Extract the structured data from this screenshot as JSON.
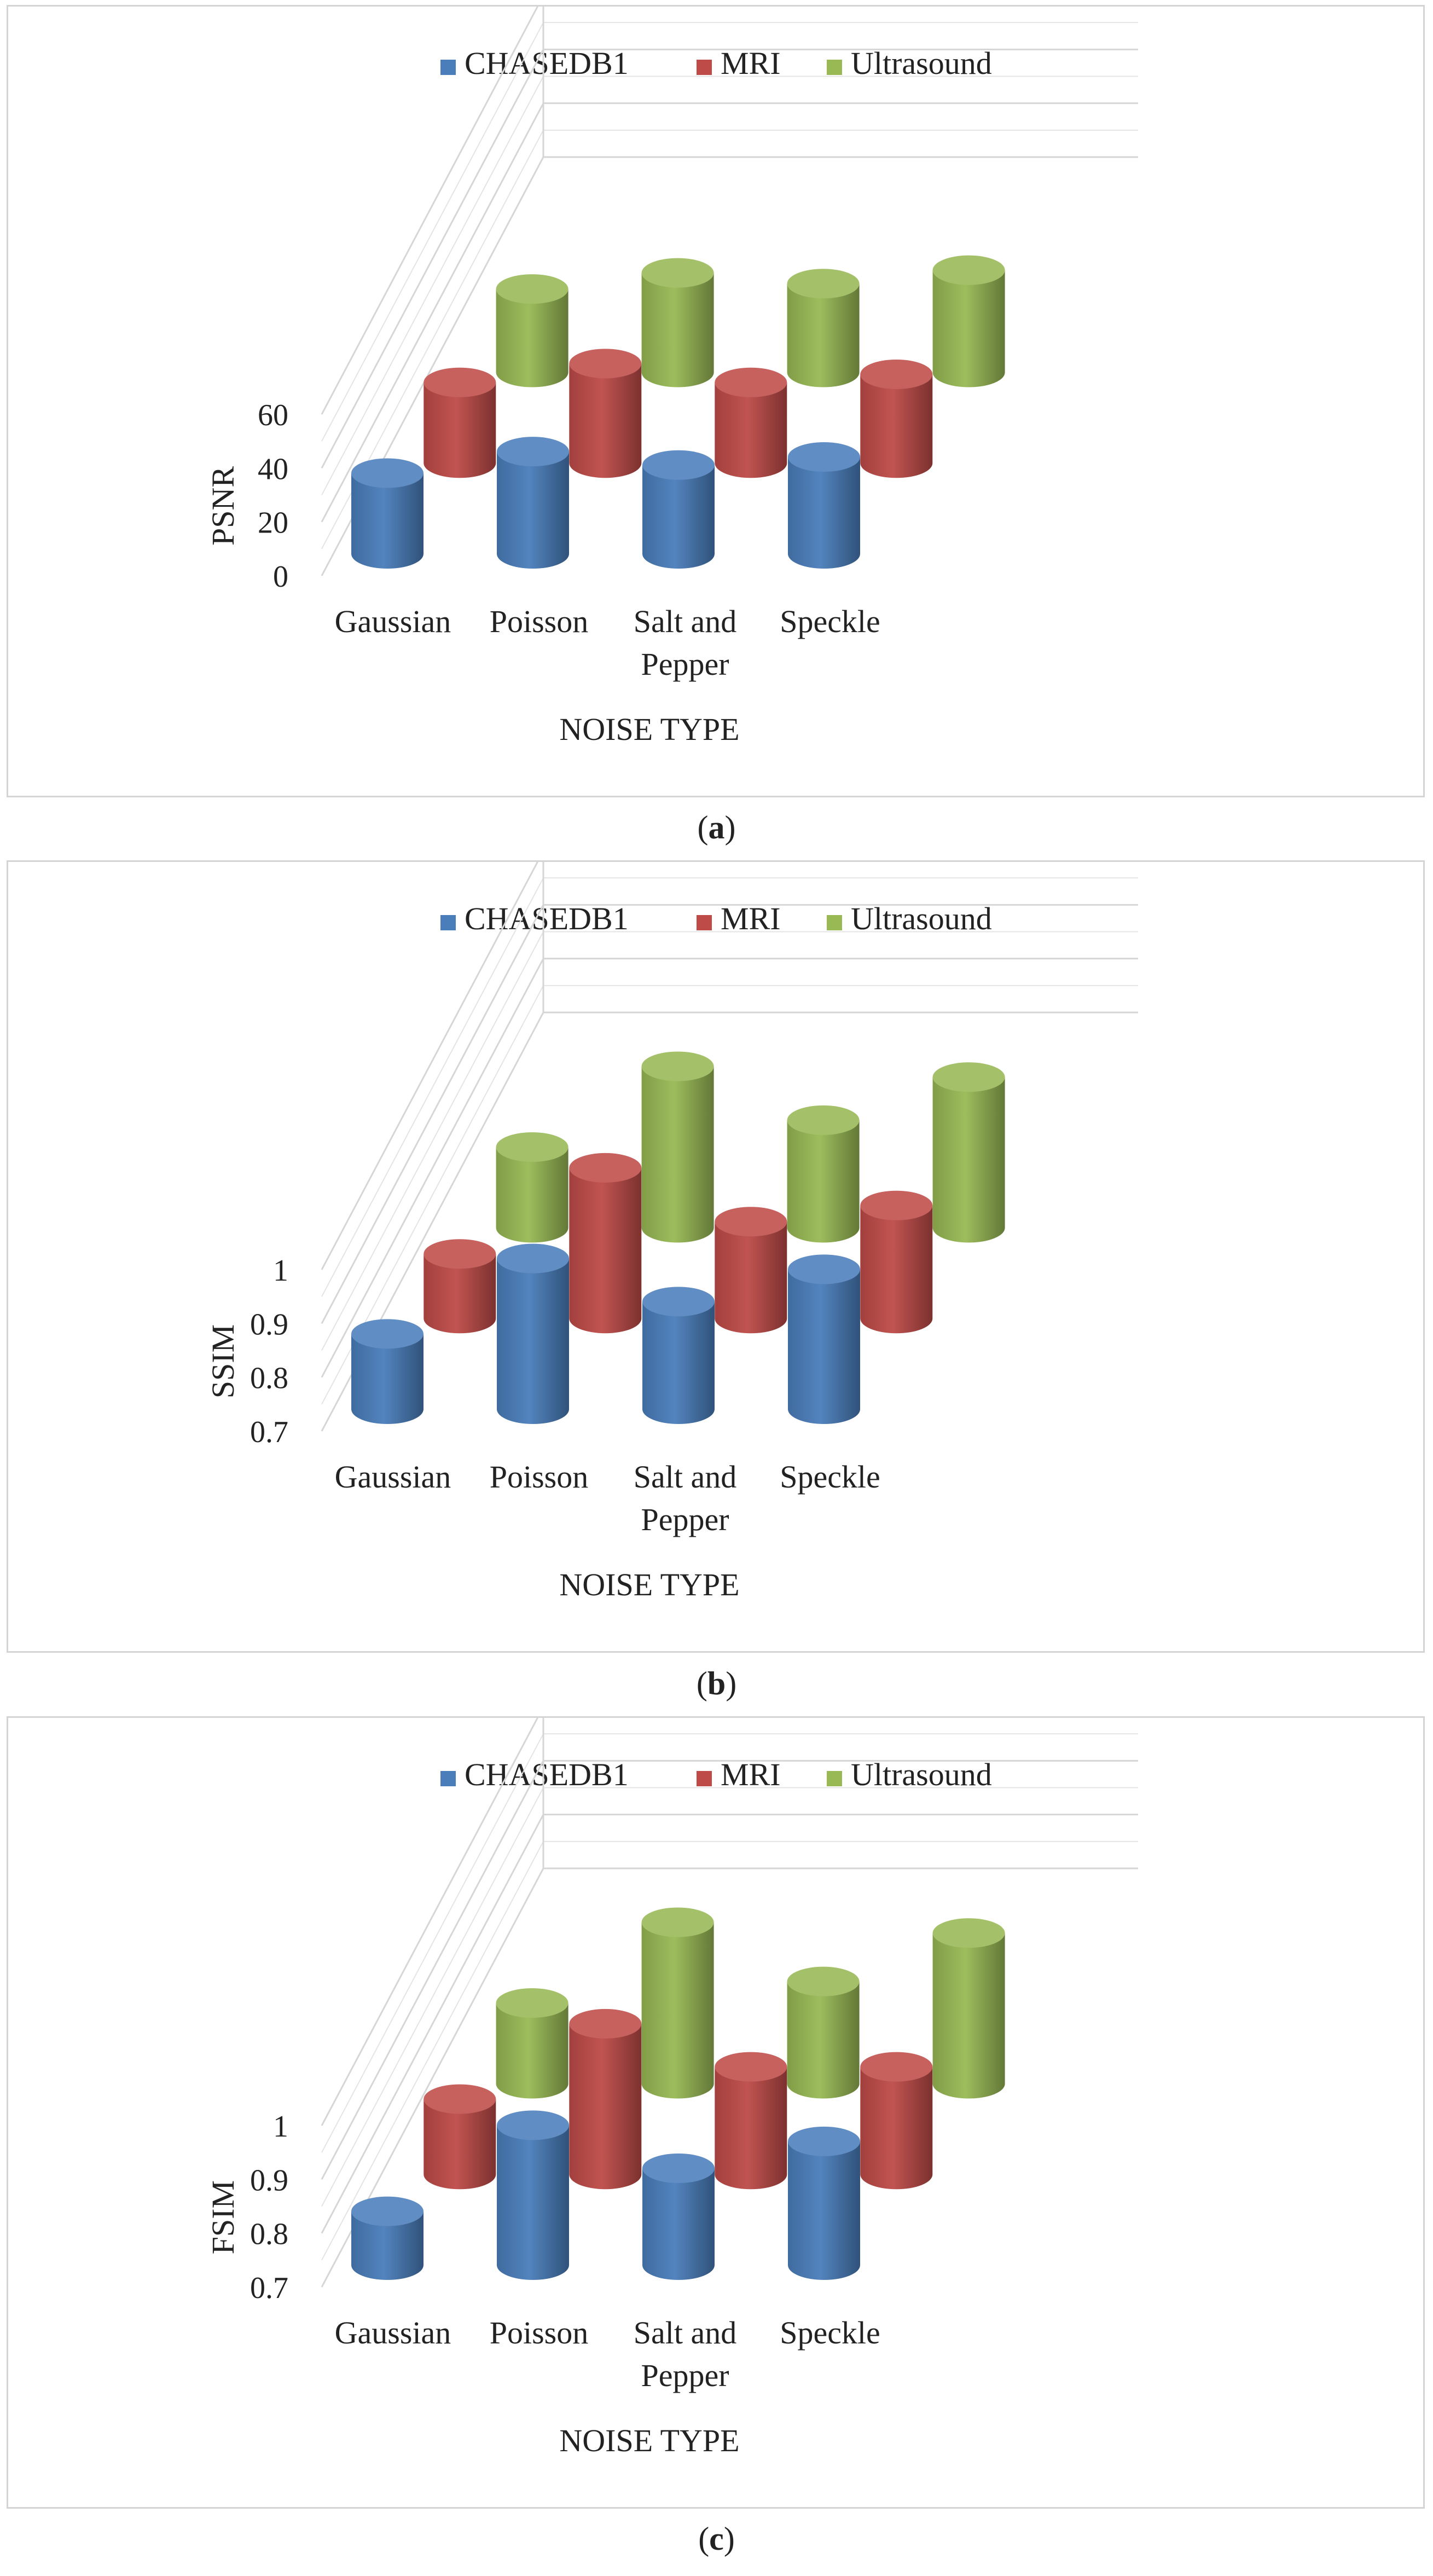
{
  "panels": [
    {
      "caption_letter": "a",
      "chart_data": {
        "type": "bar",
        "style": "3d-cylinder",
        "categories": [
          "Gaussian",
          "Poisson",
          "Salt and Pepper",
          "Speckle"
        ],
        "category_lines": [
          [
            "Gaussian"
          ],
          [
            "Poisson"
          ],
          [
            "Salt and",
            "Pepper"
          ],
          [
            "Speckle"
          ]
        ],
        "series": [
          {
            "name": "CHASEDB1",
            "values": [
              30,
              38,
              33,
              36
            ],
            "color": "#4a7ebb"
          },
          {
            "name": "MRI",
            "values": [
              30,
              37,
              30,
              33
            ],
            "color": "#be4b48"
          },
          {
            "name": "Ultrasound",
            "values": [
              31,
              37,
              33,
              38
            ],
            "color": "#98b954"
          }
        ],
        "ylabel": "PSNR",
        "xlabel": "NOISE TYPE",
        "ylim": [
          0,
          60
        ],
        "yticks": [
          "0",
          "20",
          "40",
          "60"
        ],
        "grid": true,
        "legend_position": "top-center"
      }
    },
    {
      "caption_letter": "b",
      "chart_data": {
        "type": "bar",
        "style": "3d-cylinder",
        "categories": [
          "Gaussian",
          "Poisson",
          "Salt and Pepper",
          "Speckle"
        ],
        "category_lines": [
          [
            "Gaussian"
          ],
          [
            "Poisson"
          ],
          [
            "Salt and",
            "Pepper"
          ],
          [
            "Speckle"
          ]
        ],
        "series": [
          {
            "name": "CHASEDB1",
            "values": [
              0.84,
              0.98,
              0.9,
              0.96
            ],
            "color": "#4a7ebb"
          },
          {
            "name": "MRI",
            "values": [
              0.82,
              0.98,
              0.88,
              0.91
            ],
            "color": "#be4b48"
          },
          {
            "name": "Ultrasound",
            "values": [
              0.85,
              1.0,
              0.9,
              0.98
            ],
            "color": "#98b954"
          }
        ],
        "ylabel": "SSIM",
        "xlabel": "NOISE TYPE",
        "ylim": [
          0.7,
          1
        ],
        "yticks": [
          "0.7",
          "0.8",
          "0.9",
          "1"
        ],
        "grid": true,
        "legend_position": "top-center"
      }
    },
    {
      "caption_letter": "c",
      "chart_data": {
        "type": "bar",
        "style": "3d-cylinder",
        "categories": [
          "Gaussian",
          "Poisson",
          "Salt and Pepper",
          "Speckle"
        ],
        "category_lines": [
          [
            "Gaussian"
          ],
          [
            "Poisson"
          ],
          [
            "Salt and",
            "Pepper"
          ],
          [
            "Speckle"
          ]
        ],
        "series": [
          {
            "name": "CHASEDB1",
            "values": [
              0.8,
              0.96,
              0.88,
              0.93
            ],
            "color": "#4a7ebb"
          },
          {
            "name": "MRI",
            "values": [
              0.84,
              0.98,
              0.9,
              0.9
            ],
            "color": "#be4b48"
          },
          {
            "name": "Ultrasound",
            "values": [
              0.85,
              1.0,
              0.89,
              0.98
            ],
            "color": "#98b954"
          }
        ],
        "ylabel": "FSIM",
        "xlabel": "NOISE TYPE",
        "ylim": [
          0.7,
          1
        ],
        "yticks": [
          "0.7",
          "0.8",
          "0.9",
          "1"
        ],
        "grid": true,
        "legend_position": "top-center"
      }
    }
  ]
}
